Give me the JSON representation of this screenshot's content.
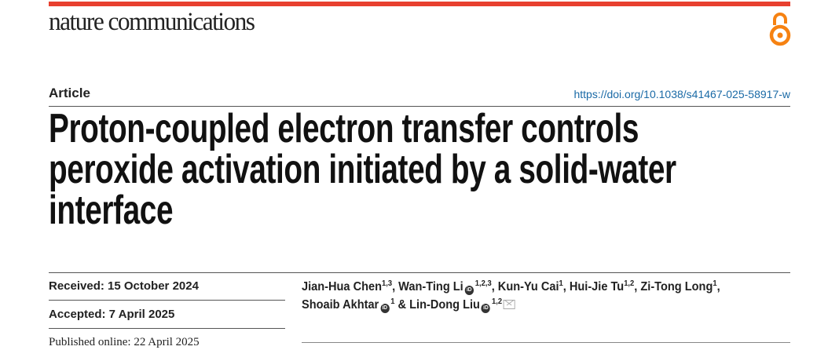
{
  "journal": {
    "name": "nature communications",
    "accent_color": "#e8402f",
    "open_access_icon": "open-access-icon",
    "open_access_color": "#f68212"
  },
  "article": {
    "type": "Article",
    "doi": "https://doi.org/10.1038/s41467-025-58917-w",
    "title_lines": [
      "Proton-coupled electron transfer controls",
      "peroxide activation initiated by a solid-water",
      "interface"
    ]
  },
  "dates": {
    "received": "Received: 15 October 2024",
    "accepted": "Accepted: 7 April 2025",
    "published": "Published online: 22 April 2025"
  },
  "authors": [
    {
      "name": "Jian-Hua Chen",
      "aff": "1,3",
      "sep": ", "
    },
    {
      "name": "Wan-Ting Li",
      "aff": "1,2,3",
      "sep": ", "
    },
    {
      "name": "Kun-Yu Cai",
      "aff": "1",
      "sep": ", "
    },
    {
      "name": "Hui-Jie Tu",
      "aff": "1,2",
      "sep": ", "
    },
    {
      "name": "Zi-Tong Long",
      "aff": "1",
      "sep": ","
    },
    {
      "name": "Shoaib Akhtar",
      "aff": "1",
      "sep": " & "
    },
    {
      "name": "Lin-Dong Liu",
      "aff": "1,2",
      "sep": ""
    }
  ],
  "orcid_label": "iD"
}
